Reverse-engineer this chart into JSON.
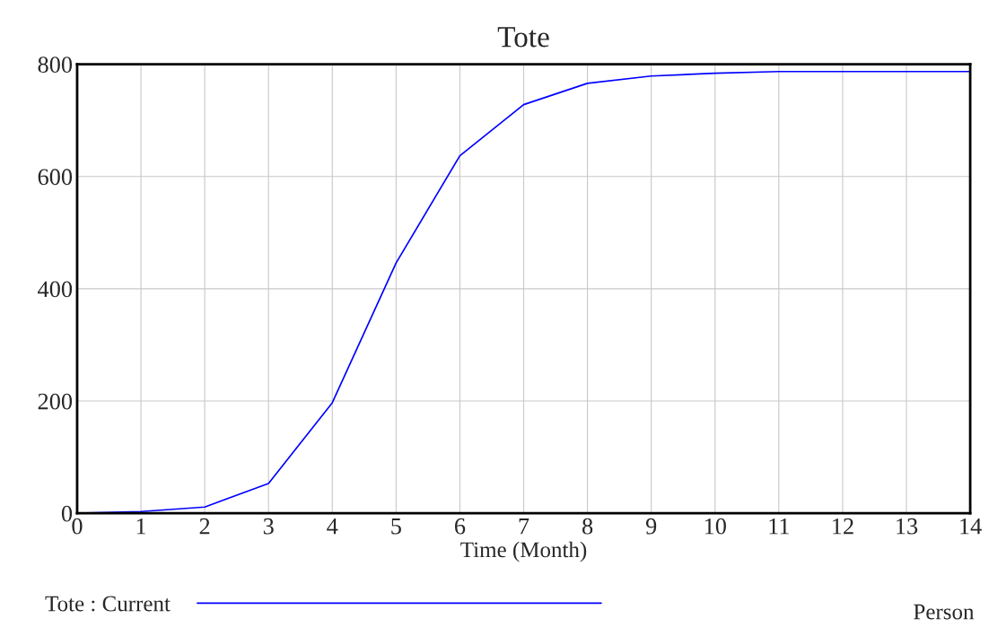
{
  "chart_data": {
    "type": "line",
    "title": "Tote",
    "xlabel": "Time (Month)",
    "x": [
      0,
      1,
      2,
      3,
      4,
      5,
      6,
      7,
      8,
      9,
      10,
      11,
      12,
      13,
      14
    ],
    "series": [
      {
        "name": "Tote : Current",
        "color": "#0000ff",
        "values": [
          0,
          3,
          11,
          53,
          197,
          446,
          637,
          728,
          766,
          779,
          784,
          787,
          787,
          787,
          787
        ]
      }
    ],
    "xlim": [
      0,
      14
    ],
    "xticks": [
      0,
      1,
      2,
      3,
      4,
      5,
      6,
      7,
      8,
      9,
      10,
      11,
      12,
      13,
      14
    ],
    "ylim": [
      0,
      800
    ],
    "yticks": [
      0,
      200,
      400,
      600,
      800
    ],
    "grid": true,
    "legend": "bottom",
    "marker": "none",
    "line_style": "solid",
    "annotations": [
      "Person"
    ]
  }
}
